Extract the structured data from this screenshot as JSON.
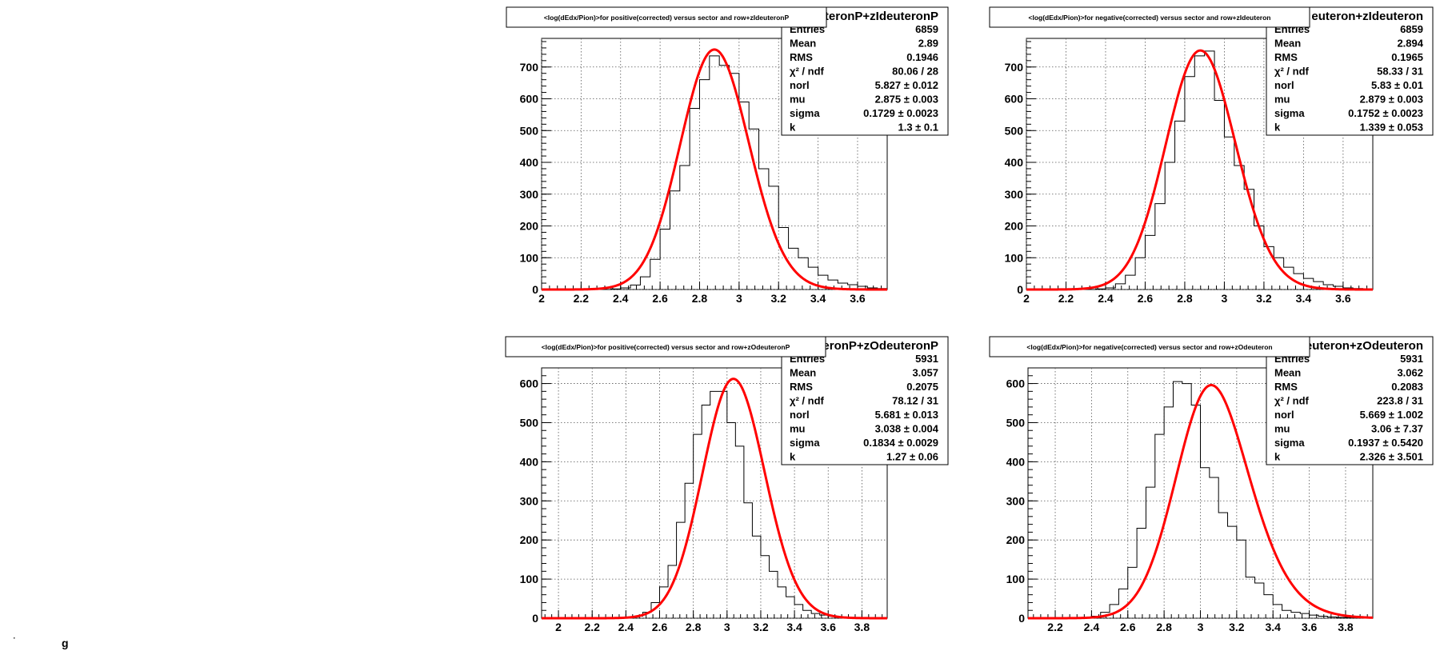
{
  "chart_data": [
    {
      "type": "histogram",
      "title": "<log(dEdx/Pion)>for positive(corrected) versus sector and row+zIdeuteronP",
      "stats_name": "teronP+zIdeuteronP",
      "stats": [
        {
          "label": "Entries",
          "value": "6859"
        },
        {
          "label": "Mean",
          "value": "2.89"
        },
        {
          "label": "RMS",
          "value": "0.1946"
        },
        {
          "label": "χ² / ndf",
          "value": "80.06 / 28"
        },
        {
          "label": "norl",
          "value": "5.827 ± 0.012"
        },
        {
          "label": "mu",
          "value": "2.875 ± 0.003"
        },
        {
          "label": "sigma",
          "value": "0.1729 ± 0.0023"
        },
        {
          "label": "k",
          "value": "1.3 ± 0.1"
        }
      ],
      "xlim": [
        2.0,
        3.75
      ],
      "ylim": [
        0,
        790
      ],
      "xticks": [
        2,
        2.2,
        2.4,
        2.6,
        2.8,
        3,
        3.2,
        3.4,
        3.6
      ],
      "xtick_labels": [
        "2",
        "2.2",
        "2.4",
        "2.6",
        "2.8",
        "3",
        "3.2",
        "3.4",
        "3.6"
      ],
      "yticks": [
        0,
        100,
        200,
        300,
        400,
        500,
        600,
        700
      ],
      "bin_edges_start": 2.0,
      "bin_width": 0.05,
      "hist": [
        0,
        0,
        0,
        0,
        0,
        0,
        0,
        2,
        5,
        14,
        40,
        95,
        190,
        310,
        390,
        570,
        660,
        735,
        705,
        680,
        590,
        505,
        380,
        325,
        195,
        130,
        100,
        70,
        45,
        30,
        20,
        15,
        10,
        5,
        3
      ],
      "fit": {
        "mu": 2.875,
        "sigma": 0.1729,
        "amp": 755,
        "k": 1.3
      }
    },
    {
      "type": "histogram",
      "title": "<log(dEdx/Pion)>for negative(corrected) versus sector and row+zIdeuteron",
      "stats_name": "euteron+zIdeuteron",
      "stats": [
        {
          "label": "Entries",
          "value": "6859"
        },
        {
          "label": "Mean",
          "value": "2.894"
        },
        {
          "label": "RMS",
          "value": "0.1965"
        },
        {
          "label": "χ² / ndf",
          "value": "58.33 / 31"
        },
        {
          "label": "norl",
          "value": "5.83 ± 0.01"
        },
        {
          "label": "mu",
          "value": "2.879 ± 0.003"
        },
        {
          "label": "sigma",
          "value": "0.1752 ± 0.0023"
        },
        {
          "label": "k",
          "value": "1.339 ± 0.053"
        }
      ],
      "xlim": [
        2.0,
        3.75
      ],
      "ylim": [
        0,
        790
      ],
      "xticks": [
        2,
        2.2,
        2.4,
        2.6,
        2.8,
        3,
        3.2,
        3.4,
        3.6
      ],
      "xtick_labels": [
        "2",
        "2.2",
        "2.4",
        "2.6",
        "2.8",
        "3",
        "3.2",
        "3.4",
        "3.6"
      ],
      "yticks": [
        0,
        100,
        200,
        300,
        400,
        500,
        600,
        700
      ],
      "bin_edges_start": 2.0,
      "bin_width": 0.05,
      "hist": [
        0,
        0,
        0,
        0,
        0,
        0,
        0,
        2,
        5,
        18,
        45,
        100,
        170,
        270,
        400,
        530,
        670,
        735,
        750,
        595,
        480,
        390,
        315,
        200,
        135,
        100,
        70,
        50,
        35,
        25,
        15,
        10,
        5,
        3,
        2
      ],
      "fit": {
        "mu": 2.879,
        "sigma": 0.1752,
        "amp": 752,
        "k": 1.339
      }
    },
    {
      "type": "histogram",
      "title": "<log(dEdx/Pion)>for positive(corrected) versus sector and row+zOdeuteronP",
      "stats_name": "teronP+zOdeuteronP",
      "stats": [
        {
          "label": "Entries",
          "value": "5931"
        },
        {
          "label": "Mean",
          "value": "3.057"
        },
        {
          "label": "RMS",
          "value": "0.2075"
        },
        {
          "label": "χ² / ndf",
          "value": "78.12 / 31"
        },
        {
          "label": "norl",
          "value": "5.681 ± 0.013"
        },
        {
          "label": "mu",
          "value": "3.038 ± 0.004"
        },
        {
          "label": "sigma",
          "value": "0.1834 ± 0.0029"
        },
        {
          "label": "k",
          "value": "1.27 ± 0.06"
        }
      ],
      "xlim": [
        1.9,
        3.95
      ],
      "ylim": [
        0,
        640
      ],
      "xticks": [
        2,
        2.2,
        2.4,
        2.6,
        2.8,
        3,
        3.2,
        3.4,
        3.6,
        3.8
      ],
      "xtick_labels": [
        "2",
        "2.2",
        "2.4",
        "2.6",
        "2.8",
        "3",
        "3.2",
        "3.4",
        "3.6",
        "3.8"
      ],
      "yticks": [
        0,
        100,
        200,
        300,
        400,
        500,
        600
      ],
      "bin_edges_start": 1.9,
      "bin_width": 0.05,
      "hist": [
        0,
        0,
        0,
        0,
        0,
        0,
        0,
        0,
        0,
        0,
        2,
        5,
        15,
        40,
        80,
        135,
        245,
        345,
        470,
        545,
        580,
        580,
        500,
        440,
        295,
        210,
        160,
        120,
        80,
        55,
        35,
        20,
        12,
        8,
        5,
        3,
        2,
        1,
        1,
        0,
        0
      ],
      "fit": {
        "mu": 3.038,
        "sigma": 0.1834,
        "amp": 612,
        "k": 1.27
      }
    },
    {
      "type": "histogram",
      "title": "<log(dEdx/Pion)>for negative(corrected) versus sector and row+zOdeuteron",
      "stats_name": "euteron+zOdeuteron",
      "stats": [
        {
          "label": "Entries",
          "value": "5931"
        },
        {
          "label": "Mean",
          "value": "3.062"
        },
        {
          "label": "RMS",
          "value": "0.2083"
        },
        {
          "label": "χ² / ndf",
          "value": "223.8 / 31"
        },
        {
          "label": "norl",
          "value": "5.669 ± 1.002"
        },
        {
          "label": "mu",
          "value": "3.06 ± 7.37"
        },
        {
          "label": "sigma",
          "value": "0.1937 ± 0.5420"
        },
        {
          "label": "k",
          "value": "2.326 ± 3.501"
        }
      ],
      "xlim": [
        2.05,
        3.95
      ],
      "ylim": [
        0,
        640
      ],
      "xticks": [
        2.2,
        2.4,
        2.6,
        2.8,
        3,
        3.2,
        3.4,
        3.6,
        3.8
      ],
      "xtick_labels": [
        "2.2",
        "2.4",
        "2.6",
        "2.8",
        "3",
        "3.2",
        "3.4",
        "3.6",
        "3.8"
      ],
      "yticks": [
        0,
        100,
        200,
        300,
        400,
        500,
        600
      ],
      "bin_edges_start": 2.05,
      "bin_width": 0.05,
      "hist": [
        0,
        0,
        0,
        0,
        0,
        0,
        2,
        5,
        15,
        35,
        75,
        130,
        230,
        335,
        470,
        540,
        605,
        600,
        545,
        385,
        360,
        270,
        235,
        200,
        105,
        90,
        60,
        35,
        20,
        15,
        12,
        8,
        5,
        3,
        2,
        2,
        1,
        1
      ],
      "fit": {
        "mu": 3.06,
        "sigma": 0.1937,
        "amp": 596,
        "k": 2.326
      }
    }
  ],
  "footer": {
    "mark": "g"
  }
}
